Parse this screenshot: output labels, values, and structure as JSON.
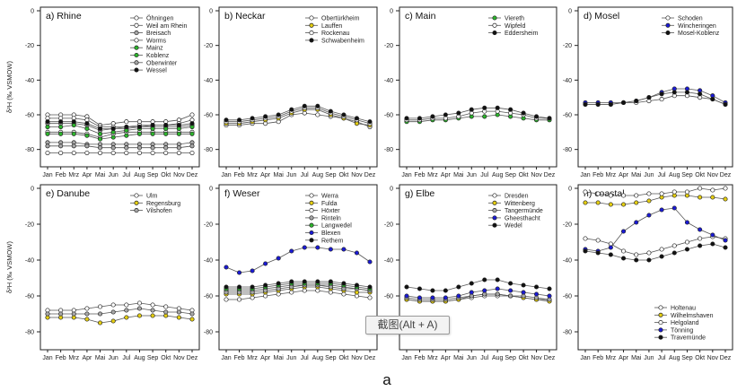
{
  "figure_label": "a",
  "tooltip": "截图(Alt + A)",
  "ylabel_top": "δ²H (‰ VSMOW)",
  "ylabel_bottom": "δ²H (‰ VSMOW)",
  "colors": {
    "white": "#ffffff",
    "grey": "#a8a8a8",
    "green": "#2db52d",
    "yellow": "#e6cf12",
    "black": "#111111",
    "blue": "#1a1ad6"
  },
  "chart_data": [
    {
      "type": "line",
      "title": "a) Rhine",
      "categories": [
        "Jan",
        "Feb",
        "Mrz",
        "Apr",
        "Mai",
        "Jun",
        "Jul",
        "Aug",
        "Sep",
        "Okt",
        "Nov",
        "Dez"
      ],
      "ylim": [
        -90,
        0
      ],
      "yticks": [
        0,
        -20,
        -40,
        -60,
        -80
      ],
      "legend_position": "top-right",
      "series": [
        {
          "name": "Öhningen",
          "marker": "white",
          "values": [
            -60,
            -60,
            -60,
            -61,
            -66,
            -65,
            -64,
            -64,
            -64,
            -64,
            -63,
            -60
          ]
        },
        {
          "name": "Weil am Rhein",
          "marker": "white",
          "values": [
            -62,
            -62,
            -62,
            -63,
            -67,
            -67,
            -67,
            -66,
            -66,
            -66,
            -65,
            -63
          ]
        },
        {
          "name": "Breisach",
          "marker": "grey",
          "values": [
            -65,
            -65,
            -65,
            -66,
            -69,
            -68,
            -68,
            -67,
            -67,
            -67,
            -67,
            -66
          ]
        },
        {
          "name": "Worms",
          "marker": "white",
          "values": [
            -70,
            -70,
            -70,
            -71,
            -73,
            -71,
            -70,
            -70,
            -70,
            -70,
            -70,
            -70
          ]
        },
        {
          "name": "Mainz",
          "marker": "green",
          "values": [
            -67,
            -67,
            -66,
            -68,
            -71,
            -70,
            -69,
            -68,
            -68,
            -68,
            -68,
            -67
          ]
        },
        {
          "name": "Koblenz",
          "marker": "green",
          "values": [
            -71,
            -71,
            -71,
            -72,
            -74,
            -73,
            -72,
            -71,
            -71,
            -71,
            -71,
            -71
          ]
        },
        {
          "name": "Oberwinter",
          "marker": "grey",
          "values": [
            -76,
            -76,
            -76,
            -77,
            -77,
            -77,
            -77,
            -77,
            -77,
            -77,
            -77,
            -76
          ]
        },
        {
          "name": "Wessel",
          "marker": "black",
          "values": [
            -64,
            -64,
            -64,
            -65,
            -68,
            -68,
            -67,
            -67,
            -66,
            -66,
            -66,
            -65
          ]
        },
        {
          "name": "",
          "marker": "white",
          "values": [
            -82,
            -82,
            -82,
            -82,
            -82,
            -82,
            -82,
            -82,
            -82,
            -82,
            -82,
            -82
          ]
        },
        {
          "name": "",
          "marker": "grey",
          "values": [
            -78,
            -78,
            -78,
            -78,
            -79,
            -79,
            -79,
            -79,
            -79,
            -79,
            -79,
            -78
          ]
        }
      ]
    },
    {
      "type": "line",
      "title": "b) Neckar",
      "categories": [
        "Jan",
        "Feb",
        "Mrz",
        "Apr",
        "Mai",
        "Jun",
        "Jul",
        "Aug",
        "Sep",
        "Okt",
        "Nov",
        "Dez"
      ],
      "ylim": [
        -90,
        0
      ],
      "yticks": [
        0,
        -20,
        -40,
        -60,
        -80
      ],
      "legend_position": "top-right",
      "series": [
        {
          "name": "Obertürkheim",
          "marker": "white",
          "values": [
            -66,
            -66,
            -65,
            -65,
            -64,
            -60,
            -59,
            -60,
            -61,
            -62,
            -64,
            -67
          ]
        },
        {
          "name": "Lauffen",
          "marker": "yellow",
          "values": [
            -65,
            -65,
            -64,
            -63,
            -62,
            -59,
            -57,
            -57,
            -60,
            -62,
            -65,
            -66
          ]
        },
        {
          "name": "Rockenau",
          "marker": "white",
          "values": [
            -64,
            -64,
            -63,
            -62,
            -61,
            -58,
            -56,
            -56,
            -59,
            -61,
            -63,
            -65
          ]
        },
        {
          "name": "Schwabenheim",
          "marker": "black",
          "values": [
            -63,
            -63,
            -62,
            -61,
            -60,
            -57,
            -55,
            -55,
            -58,
            -60,
            -62,
            -64
          ]
        }
      ]
    },
    {
      "type": "line",
      "title": "c) Main",
      "categories": [
        "Jan",
        "Feb",
        "Mrz",
        "Apr",
        "Mai",
        "Jun",
        "Jul",
        "Aug",
        "Sep",
        "Okt",
        "Nov",
        "Dez"
      ],
      "ylim": [
        -90,
        0
      ],
      "yticks": [
        0,
        -20,
        -40,
        -60,
        -80
      ],
      "legend_position": "top-right",
      "series": [
        {
          "name": "Viereth",
          "marker": "green",
          "values": [
            -64,
            -64,
            -63,
            -63,
            -62,
            -61,
            -61,
            -60,
            -61,
            -62,
            -63,
            -63
          ]
        },
        {
          "name": "Wipfeld",
          "marker": "white",
          "values": [
            -63,
            -63,
            -62,
            -62,
            -61,
            -59,
            -58,
            -58,
            -59,
            -60,
            -62,
            -62
          ]
        },
        {
          "name": "Eddersheim",
          "marker": "black",
          "values": [
            -62,
            -62,
            -61,
            -60,
            -59,
            -57,
            -56,
            -56,
            -57,
            -59,
            -61,
            -62
          ]
        }
      ]
    },
    {
      "type": "line",
      "title": "d) Mosel",
      "categories": [
        "Jan",
        "Feb",
        "Mrz",
        "Apr",
        "Mai",
        "Jun",
        "Jul",
        "Aug",
        "Sep",
        "Okt",
        "Nov",
        "Dez"
      ],
      "ylim": [
        -90,
        0
      ],
      "yticks": [
        0,
        -20,
        -40,
        -60,
        -80
      ],
      "legend_position": "top-right",
      "series": [
        {
          "name": "Schoden",
          "marker": "white",
          "values": [
            -54,
            -54,
            -54,
            -53,
            -53,
            -52,
            -51,
            -49,
            -49,
            -50,
            -51,
            -54
          ]
        },
        {
          "name": "Wincheringen",
          "marker": "blue",
          "values": [
            -53,
            -53,
            -53,
            -53,
            -52,
            -50,
            -47,
            -45,
            -45,
            -46,
            -49,
            -53
          ]
        },
        {
          "name": "Mosel-Koblenz",
          "marker": "black",
          "values": [
            -54,
            -54,
            -54,
            -53,
            -52,
            -50,
            -48,
            -47,
            -47,
            -48,
            -51,
            -54
          ]
        }
      ]
    },
    {
      "type": "line",
      "title": "e) Danube",
      "categories": [
        "Jan",
        "Feb",
        "Mrz",
        "Apr",
        "Mai",
        "Jun",
        "Jul",
        "Aug",
        "Sep",
        "Okt",
        "Nov",
        "Dez"
      ],
      "ylim": [
        -90,
        0
      ],
      "yticks": [
        0,
        -20,
        -40,
        -60,
        -80
      ],
      "legend_position": "top-right",
      "series": [
        {
          "name": "Ulm",
          "marker": "white",
          "values": [
            -68,
            -68,
            -68,
            -67,
            -66,
            -65,
            -65,
            -64,
            -65,
            -66,
            -67,
            -68
          ]
        },
        {
          "name": "Regensburg",
          "marker": "yellow",
          "values": [
            -72,
            -72,
            -72,
            -73,
            -75,
            -74,
            -72,
            -71,
            -71,
            -71,
            -72,
            -73
          ]
        },
        {
          "name": "Vilshofen",
          "marker": "grey",
          "values": [
            -70,
            -70,
            -70,
            -70,
            -70,
            -69,
            -68,
            -67,
            -68,
            -69,
            -69,
            -70
          ]
        }
      ]
    },
    {
      "type": "line",
      "title": "f) Weser",
      "categories": [
        "Jan",
        "Feb",
        "Mrz",
        "Apr",
        "Mai",
        "Jun",
        "Jul",
        "Aug",
        "Sep",
        "Okt",
        "Nov",
        "Dez"
      ],
      "ylim": [
        -90,
        0
      ],
      "yticks": [
        0,
        -20,
        -40,
        -60,
        -80
      ],
      "legend_position": "top-right",
      "series": [
        {
          "name": "Werra",
          "marker": "white",
          "values": [
            -62,
            -62,
            -61,
            -60,
            -59,
            -58,
            -57,
            -57,
            -58,
            -59,
            -60,
            -61
          ]
        },
        {
          "name": "Fulda",
          "marker": "yellow",
          "values": [
            -59,
            -59,
            -59,
            -58,
            -57,
            -56,
            -55,
            -55,
            -56,
            -57,
            -58,
            -58
          ]
        },
        {
          "name": "Höxter",
          "marker": "white",
          "values": [
            -57,
            -57,
            -57,
            -56,
            -55,
            -54,
            -54,
            -54,
            -54,
            -55,
            -56,
            -57
          ]
        },
        {
          "name": "Rinteln",
          "marker": "grey",
          "values": [
            -58,
            -58,
            -58,
            -57,
            -56,
            -55,
            -54,
            -54,
            -55,
            -56,
            -56,
            -57
          ]
        },
        {
          "name": "Langwedel",
          "marker": "green",
          "values": [
            -56,
            -56,
            -56,
            -55,
            -54,
            -53,
            -53,
            -53,
            -53,
            -54,
            -55,
            -56
          ]
        },
        {
          "name": "Blexen",
          "marker": "blue",
          "values": [
            -44,
            -47,
            -46,
            -42,
            -39,
            -35,
            -33,
            -33,
            -34,
            -34,
            -36,
            -41
          ]
        },
        {
          "name": "Rethem",
          "marker": "black",
          "values": [
            -55,
            -55,
            -55,
            -54,
            -53,
            -52,
            -52,
            -52,
            -52,
            -53,
            -54,
            -55
          ]
        }
      ]
    },
    {
      "type": "line",
      "title": "g) Elbe",
      "categories": [
        "Jan",
        "Feb",
        "Mrz",
        "Apr",
        "Mai",
        "Jun",
        "Jul",
        "Aug",
        "Sep",
        "Okt",
        "Nov",
        "Dez"
      ],
      "ylim": [
        -90,
        0
      ],
      "yticks": [
        0,
        -20,
        -40,
        -60,
        -80
      ],
      "legend_position": "top-right",
      "series": [
        {
          "name": "Dresden",
          "marker": "white",
          "values": [
            -62,
            -63,
            -63,
            -63,
            -62,
            -61,
            -60,
            -60,
            -60,
            -61,
            -62,
            -62
          ]
        },
        {
          "name": "Wittenberg",
          "marker": "yellow",
          "values": [
            -62,
            -63,
            -63,
            -63,
            -62,
            -60,
            -59,
            -59,
            -60,
            -61,
            -62,
            -63
          ]
        },
        {
          "name": "Tangermünde",
          "marker": "grey",
          "values": [
            -61,
            -62,
            -62,
            -62,
            -61,
            -60,
            -59,
            -59,
            -60,
            -60,
            -61,
            -62
          ]
        },
        {
          "name": "Gheesthacht",
          "marker": "blue",
          "values": [
            -60,
            -61,
            -61,
            -61,
            -60,
            -58,
            -57,
            -56,
            -57,
            -58,
            -59,
            -60
          ]
        },
        {
          "name": "Wedel",
          "marker": "black",
          "values": [
            -55,
            -56,
            -57,
            -57,
            -55,
            -53,
            -51,
            -51,
            -53,
            -54,
            -55,
            -56
          ]
        }
      ]
    },
    {
      "type": "line",
      "title": "h) coastal",
      "categories": [
        "Jan",
        "Feb",
        "Mrz",
        "Apr",
        "Mai",
        "Jun",
        "Jul",
        "Aug",
        "Sep",
        "Okt",
        "Nov",
        "Dez"
      ],
      "ylim": [
        -90,
        0
      ],
      "yticks": [
        0,
        -20,
        -40,
        -60,
        -80
      ],
      "legend_position": "bottom-right",
      "series": [
        {
          "name": "Holtenau",
          "marker": "white",
          "values": [
            -28,
            -29,
            -31,
            -35,
            -37,
            -36,
            -34,
            -32,
            -30,
            -28,
            -27,
            -28
          ]
        },
        {
          "name": "Wilhelmshaven",
          "marker": "yellow",
          "values": [
            -8,
            -8,
            -9,
            -9,
            -8,
            -7,
            -5,
            -4,
            -4,
            -5,
            -5,
            -6
          ]
        },
        {
          "name": "Helgoland",
          "marker": "white",
          "values": [
            -2,
            -3,
            -4,
            -4,
            -4,
            -3,
            -3,
            -2,
            -2,
            0,
            -1,
            0
          ]
        },
        {
          "name": "Tönning",
          "marker": "blue",
          "values": [
            -34,
            -35,
            -33,
            -24,
            -19,
            -15,
            -12,
            -11,
            -19,
            -23,
            -26,
            -29
          ]
        },
        {
          "name": "Travemünde",
          "marker": "black",
          "values": [
            -35,
            -36,
            -37,
            -39,
            -40,
            -40,
            -38,
            -36,
            -34,
            -32,
            -31,
            -33
          ]
        }
      ]
    }
  ]
}
